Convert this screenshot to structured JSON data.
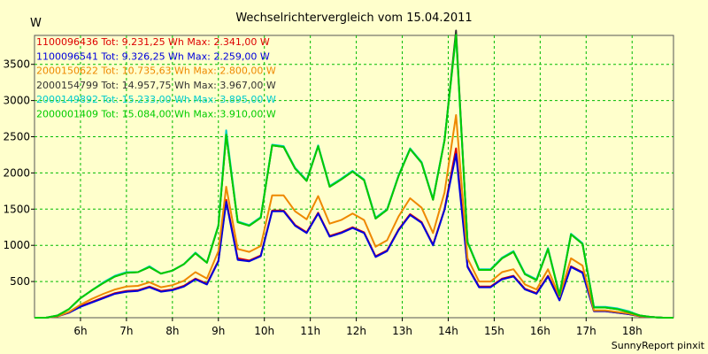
{
  "chart_data": {
    "type": "line",
    "title": "Wechselrichtervergleich vom 15.04.2011",
    "ylabel": "W",
    "xlabel": "",
    "ylim": [
      0,
      3900
    ],
    "xlim": [
      5.0,
      18.9
    ],
    "yticks": [
      500,
      1000,
      1500,
      2000,
      2500,
      3000,
      3500
    ],
    "xticks": [
      6,
      7,
      8,
      9,
      10,
      11,
      12,
      13,
      14,
      15,
      16,
      17,
      18
    ],
    "xtick_labels": [
      "6h",
      "7h",
      "8h",
      "9h",
      "10h",
      "11h",
      "12h",
      "13h",
      "14h",
      "15h",
      "16h",
      "17h",
      "18h"
    ],
    "grid": true,
    "legend_position": "top-left",
    "x": [
      5.0,
      5.25,
      5.5,
      5.75,
      6.0,
      6.25,
      6.5,
      6.75,
      7.0,
      7.25,
      7.5,
      7.75,
      8.0,
      8.25,
      8.5,
      8.75,
      9.0,
      9.17,
      9.42,
      9.67,
      9.92,
      10.17,
      10.42,
      10.67,
      10.92,
      11.17,
      11.42,
      11.67,
      11.92,
      12.17,
      12.42,
      12.67,
      12.92,
      13.17,
      13.42,
      13.67,
      13.92,
      14.17,
      14.42,
      14.67,
      14.92,
      15.17,
      15.42,
      15.67,
      15.92,
      16.17,
      16.42,
      16.67,
      16.92,
      17.17,
      17.42,
      17.67,
      17.92,
      18.17,
      18.42,
      18.67,
      18.9
    ],
    "series": [
      {
        "name": "1100096436",
        "legend": "1100096436 Tot: 9.231,25 Wh Max: 2.341,00 W",
        "color": "#dd0000",
        "values": [
          0,
          0,
          20,
          70,
          160,
          220,
          280,
          340,
          370,
          380,
          430,
          370,
          390,
          440,
          540,
          470,
          790,
          1630,
          820,
          790,
          860,
          1480,
          1480,
          1280,
          1180,
          1450,
          1130,
          1180,
          1250,
          1180,
          850,
          930,
          1220,
          1430,
          1320,
          1010,
          1500,
          2340,
          710,
          430,
          430,
          540,
          580,
          400,
          340,
          580,
          260,
          710,
          630,
          90,
          90,
          70,
          50,
          20,
          10,
          0,
          0
        ]
      },
      {
        "name": "1100096541",
        "legend": "1100096541 Tot: 9.326,25 Wh Max: 2.259,00 W",
        "color": "#0000dd",
        "values": [
          0,
          0,
          20,
          70,
          150,
          210,
          270,
          330,
          360,
          370,
          420,
          360,
          380,
          430,
          530,
          460,
          780,
          1600,
          800,
          780,
          850,
          1470,
          1470,
          1270,
          1170,
          1440,
          1120,
          1170,
          1240,
          1170,
          840,
          920,
          1210,
          1420,
          1310,
          1000,
          1490,
          2260,
          700,
          420,
          420,
          530,
          570,
          390,
          330,
          570,
          240,
          700,
          620,
          90,
          90,
          70,
          50,
          20,
          10,
          0,
          0
        ]
      },
      {
        "name": "2000150622",
        "legend": "2000150622 Tot: 10.735,63 Wh Max: 2.800,00 W",
        "color": "#ee8800",
        "values": [
          0,
          0,
          20,
          80,
          180,
          260,
          330,
          390,
          430,
          440,
          490,
          420,
          450,
          510,
          630,
          540,
          920,
          1810,
          950,
          910,
          990,
          1690,
          1690,
          1470,
          1360,
          1680,
          1300,
          1350,
          1440,
          1350,
          980,
          1070,
          1400,
          1650,
          1520,
          1170,
          1730,
          2800,
          820,
          500,
          500,
          630,
          670,
          460,
          390,
          670,
          290,
          820,
          720,
          100,
          100,
          80,
          60,
          20,
          10,
          0,
          0
        ]
      },
      {
        "name": "2000154799",
        "legend": "2000154799 Tot: 14.957,75 Wh Max: 3.967,00 W",
        "color": "#333333",
        "values": [
          0,
          0,
          30,
          120,
          270,
          380,
          480,
          570,
          620,
          630,
          700,
          610,
          650,
          740,
          890,
          760,
          1270,
          2530,
          1320,
          1270,
          1380,
          2380,
          2360,
          2060,
          1890,
          2370,
          1810,
          1910,
          2020,
          1900,
          1370,
          1490,
          1960,
          2330,
          2140,
          1630,
          2450,
          3967,
          1040,
          660,
          660,
          820,
          910,
          600,
          520,
          950,
          310,
          1150,
          1020,
          140,
          140,
          120,
          80,
          30,
          10,
          0,
          0
        ]
      },
      {
        "name": "2000149892",
        "legend": "2000149892 Tot: 15.233,00 Wh Max: 3.895,00 W",
        "color": "#00cccc",
        "values": [
          0,
          0,
          30,
          120,
          270,
          380,
          490,
          580,
          630,
          630,
          710,
          610,
          650,
          740,
          900,
          760,
          1280,
          2590,
          1330,
          1280,
          1390,
          2390,
          2370,
          2070,
          1900,
          2380,
          1820,
          1920,
          2030,
          1910,
          1380,
          1500,
          1970,
          2340,
          2150,
          1640,
          2460,
          3895,
          1050,
          670,
          670,
          830,
          920,
          610,
          530,
          960,
          320,
          1160,
          1030,
          150,
          150,
          130,
          90,
          30,
          10,
          0,
          0
        ]
      },
      {
        "name": "2000001409",
        "legend": "2000001409 Tot: 15.084,00 Wh Max: 3.910,00 W",
        "color": "#00cc00",
        "values": [
          0,
          0,
          30,
          120,
          270,
          380,
          480,
          570,
          620,
          630,
          700,
          610,
          650,
          740,
          890,
          760,
          1270,
          2530,
          1320,
          1270,
          1380,
          2380,
          2360,
          2060,
          1890,
          2370,
          1810,
          1910,
          2020,
          1900,
          1370,
          1490,
          1960,
          2330,
          2140,
          1630,
          2450,
          3910,
          1040,
          660,
          660,
          820,
          910,
          600,
          520,
          950,
          310,
          1150,
          1020,
          140,
          140,
          120,
          80,
          30,
          10,
          0,
          0
        ]
      }
    ],
    "footer": "SunnyReport pinxit"
  }
}
